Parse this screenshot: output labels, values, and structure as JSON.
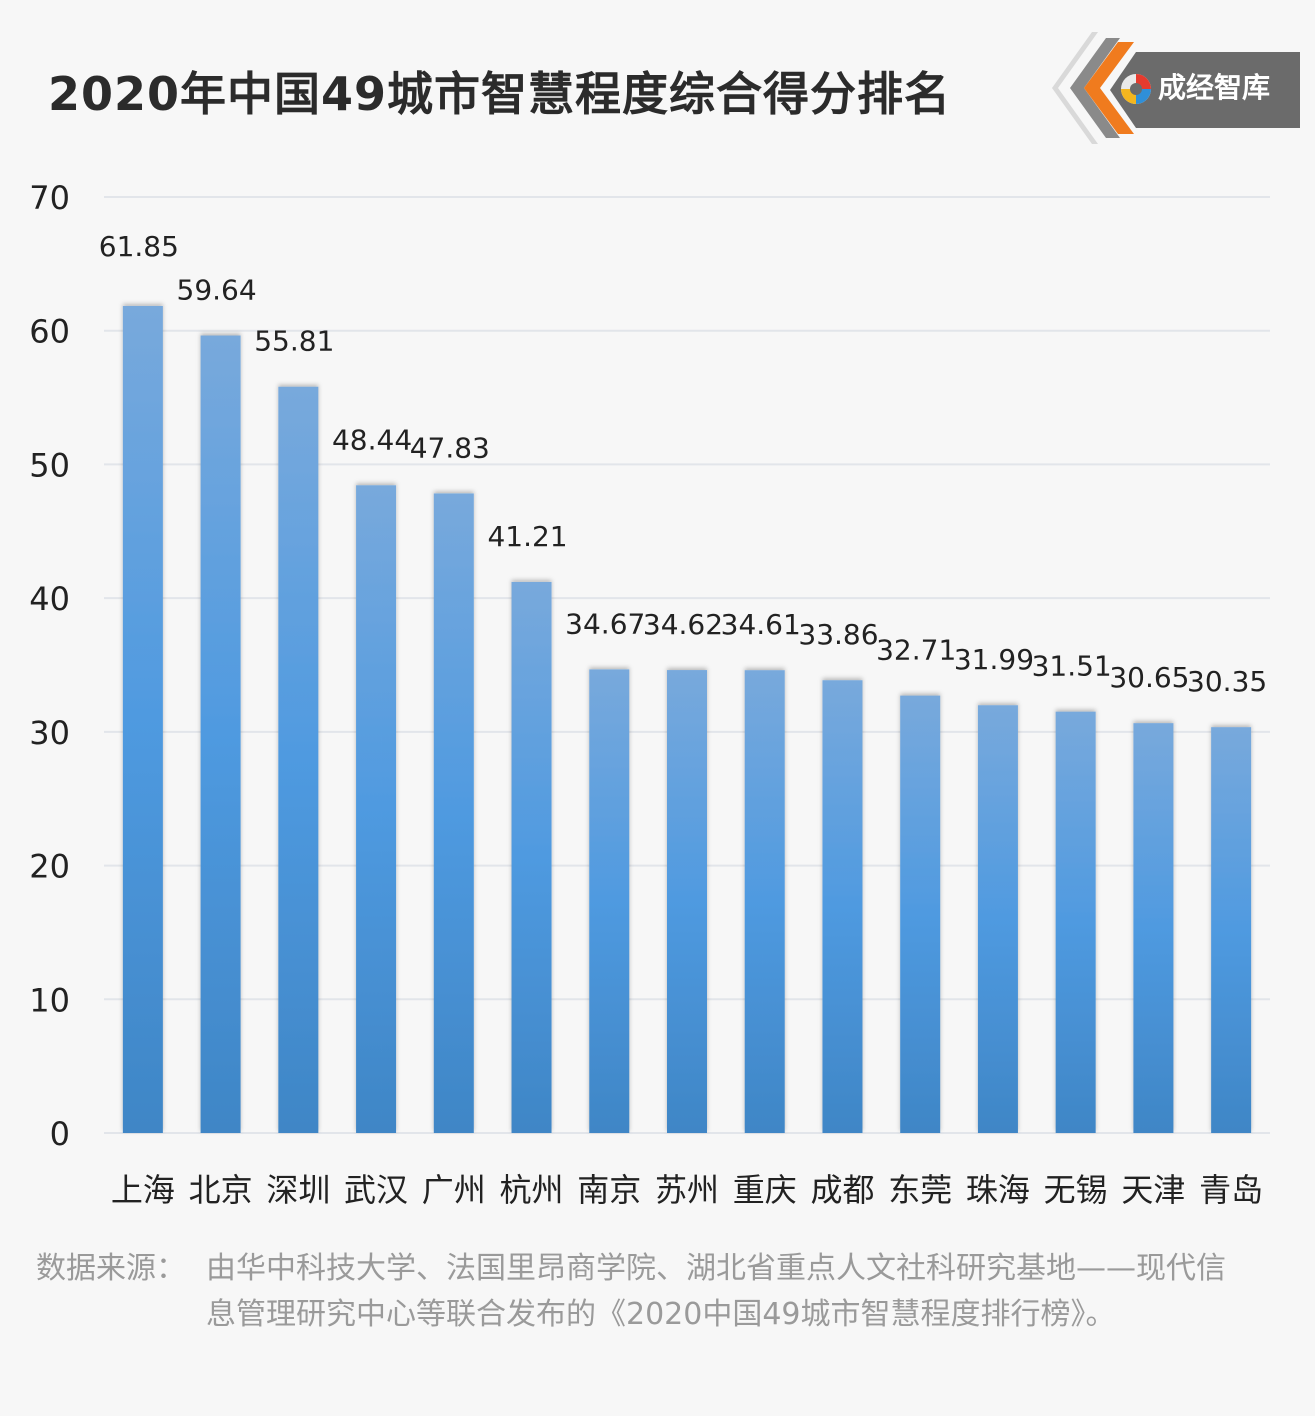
{
  "title": "2020年中国49城市智慧程度综合得分排名",
  "logo": {
    "text": "成经智库",
    "icon": "chengjing-swirl-icon",
    "colors": {
      "orange": "#f07b1e",
      "gray": "#6b6b6b"
    }
  },
  "colors": {
    "bar_top": "#78a9dc",
    "bar_mid": "#4f9ae0",
    "bar_bottom": "#3f86c6",
    "grid": "#e2e5ea",
    "text": "#222222",
    "source": "#9a9a9a"
  },
  "chart_data": {
    "type": "bar",
    "title": "2020年中国49城市智慧程度综合得分排名",
    "categories": [
      "上海",
      "北京",
      "深圳",
      "武汉",
      "广州",
      "杭州",
      "南京",
      "苏州",
      "重庆",
      "成都",
      "东莞",
      "珠海",
      "无锡",
      "天津",
      "青岛"
    ],
    "values": [
      61.85,
      59.64,
      55.81,
      48.44,
      47.83,
      41.21,
      34.67,
      34.62,
      34.61,
      33.86,
      32.71,
      31.99,
      31.51,
      30.65,
      30.35
    ],
    "data_labels": [
      "61.85",
      "59.64",
      "55.81",
      "48.44",
      "47.83",
      "41.21",
      "34.67",
      "34.62",
      "34.61",
      "33.86",
      "32.71",
      "31.99",
      "31.51",
      "30.65",
      "30.35"
    ],
    "ylim": [
      0,
      70
    ],
    "yticks": [
      "0",
      "10",
      "20",
      "30",
      "40",
      "50",
      "60",
      "70"
    ],
    "xlabel": "",
    "ylabel": "",
    "grid": true,
    "legend": "none"
  },
  "source": {
    "label": "数据来源：",
    "text": "由华中科技大学、法国里昂商学院、湖北省重点人文社科研究基地——现代信息管理研究中心等联合发布的《2020中国49城市智慧程度排行榜》。"
  }
}
